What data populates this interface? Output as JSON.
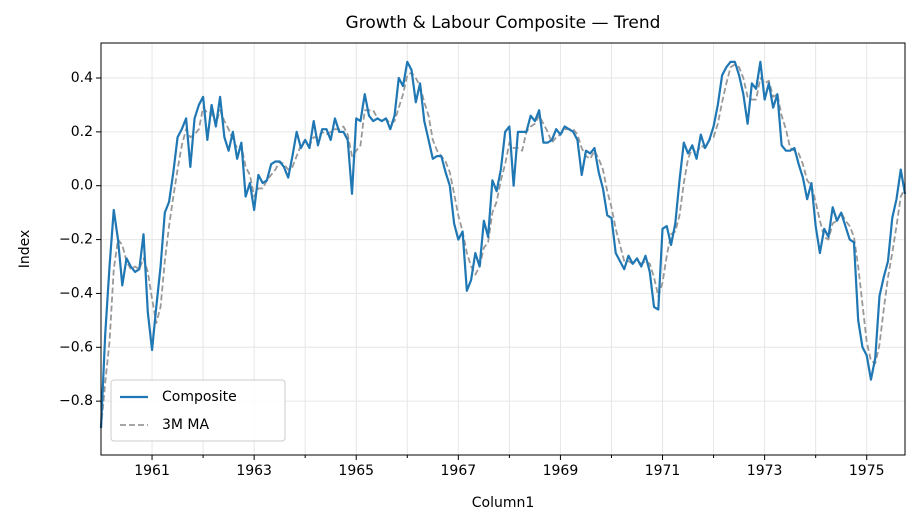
{
  "chart_data": {
    "type": "line",
    "title": "Growth & Labour Composite — Trend",
    "x_label": "Column1",
    "y_label": "Index",
    "x": [
      1960.0,
      1960.083,
      1960.167,
      1960.25,
      1960.333,
      1960.417,
      1960.5,
      1960.583,
      1960.667,
      1960.75,
      1960.833,
      1960.917,
      1961.0,
      1961.083,
      1961.167,
      1961.25,
      1961.333,
      1961.417,
      1961.5,
      1961.583,
      1961.667,
      1961.75,
      1961.833,
      1961.917,
      1962.0,
      1962.083,
      1962.167,
      1962.25,
      1962.333,
      1962.417,
      1962.5,
      1962.583,
      1962.667,
      1962.75,
      1962.833,
      1962.917,
      1963.0,
      1963.083,
      1963.167,
      1963.25,
      1963.333,
      1963.417,
      1963.5,
      1963.583,
      1963.667,
      1963.75,
      1963.833,
      1963.917,
      1964.0,
      1964.083,
      1964.167,
      1964.25,
      1964.333,
      1964.417,
      1964.5,
      1964.583,
      1964.667,
      1964.75,
      1964.833,
      1964.917,
      1965.0,
      1965.083,
      1965.167,
      1965.25,
      1965.333,
      1965.417,
      1965.5,
      1965.583,
      1965.667,
      1965.75,
      1965.833,
      1965.917,
      1966.0,
      1966.083,
      1966.167,
      1966.25,
      1966.333,
      1966.417,
      1966.5,
      1966.583,
      1966.667,
      1966.75,
      1966.833,
      1966.917,
      1967.0,
      1967.083,
      1967.167,
      1967.25,
      1967.333,
      1967.417,
      1967.5,
      1967.583,
      1967.667,
      1967.75,
      1967.833,
      1967.917,
      1968.0,
      1968.083,
      1968.167,
      1968.25,
      1968.333,
      1968.417,
      1968.5,
      1968.583,
      1968.667,
      1968.75,
      1968.833,
      1968.917,
      1969.0,
      1969.083,
      1969.167,
      1969.25,
      1969.333,
      1969.417,
      1969.5,
      1969.583,
      1969.667,
      1969.75,
      1969.833,
      1969.917,
      1970.0,
      1970.083,
      1970.167,
      1970.25,
      1970.333,
      1970.417,
      1970.5,
      1970.583,
      1970.667,
      1970.75,
      1970.833,
      1970.917,
      1971.0,
      1971.083,
      1971.167,
      1971.25,
      1971.333,
      1971.417,
      1971.5,
      1971.583,
      1971.667,
      1971.75,
      1971.833,
      1971.917,
      1972.0,
      1972.083,
      1972.167,
      1972.25,
      1972.333,
      1972.417,
      1972.5,
      1972.583,
      1972.667,
      1972.75,
      1972.833,
      1972.917,
      1973.0,
      1973.083,
      1973.167,
      1973.25,
      1973.333,
      1973.417,
      1973.5,
      1973.583,
      1973.667,
      1973.75,
      1973.833,
      1973.917,
      1974.0,
      1974.083,
      1974.167,
      1974.25,
      1974.333,
      1974.417,
      1974.5,
      1974.583,
      1974.667,
      1974.75,
      1974.833,
      1974.917,
      1975.0,
      1975.083,
      1975.167,
      1975.25,
      1975.333,
      1975.417,
      1975.5,
      1975.583,
      1975.667,
      1975.75
    ],
    "series": [
      {
        "name": "Composite",
        "color": "#1f77b4",
        "dashed": false,
        "values": [
          -0.9,
          -0.55,
          -0.3,
          -0.09,
          -0.2,
          -0.37,
          -0.27,
          -0.3,
          -0.32,
          -0.31,
          -0.18,
          -0.47,
          -0.61,
          -0.45,
          -0.3,
          -0.1,
          -0.06,
          0.05,
          0.18,
          0.21,
          0.25,
          0.07,
          0.25,
          0.3,
          0.33,
          0.17,
          0.3,
          0.22,
          0.33,
          0.18,
          0.13,
          0.2,
          0.1,
          0.16,
          -0.04,
          0.01,
          -0.09,
          0.04,
          0.01,
          0.02,
          0.08,
          0.09,
          0.09,
          0.07,
          0.03,
          0.11,
          0.2,
          0.14,
          0.17,
          0.14,
          0.24,
          0.15,
          0.21,
          0.21,
          0.17,
          0.25,
          0.2,
          0.2,
          0.17,
          -0.03,
          0.25,
          0.24,
          0.34,
          0.26,
          0.24,
          0.25,
          0.24,
          0.25,
          0.21,
          0.26,
          0.4,
          0.37,
          0.46,
          0.43,
          0.31,
          0.38,
          0.24,
          0.17,
          0.1,
          0.11,
          0.11,
          0.05,
          0.0,
          -0.14,
          -0.2,
          -0.17,
          -0.39,
          -0.35,
          -0.25,
          -0.3,
          -0.13,
          -0.19,
          0.02,
          -0.02,
          0.06,
          0.2,
          0.22,
          0.0,
          0.2,
          0.2,
          0.2,
          0.26,
          0.24,
          0.28,
          0.16,
          0.16,
          0.17,
          0.21,
          0.19,
          0.22,
          0.21,
          0.2,
          0.17,
          0.04,
          0.13,
          0.12,
          0.14,
          0.05,
          -0.01,
          -0.11,
          -0.12,
          -0.25,
          -0.28,
          -0.31,
          -0.26,
          -0.29,
          -0.27,
          -0.3,
          -0.26,
          -0.32,
          -0.45,
          -0.46,
          -0.16,
          -0.15,
          -0.22,
          -0.14,
          0.02,
          0.16,
          0.12,
          0.15,
          0.1,
          0.19,
          0.14,
          0.17,
          0.22,
          0.3,
          0.41,
          0.44,
          0.46,
          0.46,
          0.41,
          0.34,
          0.23,
          0.38,
          0.36,
          0.46,
          0.32,
          0.38,
          0.29,
          0.34,
          0.15,
          0.13,
          0.13,
          0.14,
          0.08,
          0.03,
          -0.05,
          0.01,
          -0.15,
          -0.25,
          -0.16,
          -0.19,
          -0.08,
          -0.13,
          -0.1,
          -0.15,
          -0.2,
          -0.21,
          -0.5,
          -0.6,
          -0.63,
          -0.72,
          -0.64,
          -0.41,
          -0.34,
          -0.28,
          -0.12,
          -0.05,
          0.06,
          -0.03
        ]
      },
      {
        "name": "3M MA",
        "color": "#999999",
        "dashed": true,
        "values": [
          -0.9,
          -0.73,
          -0.58,
          -0.31,
          -0.2,
          -0.22,
          -0.28,
          -0.31,
          -0.3,
          -0.31,
          -0.27,
          -0.32,
          -0.42,
          -0.51,
          -0.45,
          -0.28,
          -0.15,
          -0.04,
          0.06,
          0.15,
          0.21,
          0.18,
          0.19,
          0.21,
          0.29,
          0.27,
          0.27,
          0.23,
          0.28,
          0.24,
          0.21,
          0.17,
          0.14,
          0.15,
          0.07,
          0.04,
          -0.04,
          -0.01,
          -0.01,
          0.02,
          0.04,
          0.06,
          0.09,
          0.08,
          0.06,
          0.07,
          0.11,
          0.15,
          0.17,
          0.15,
          0.18,
          0.18,
          0.2,
          0.19,
          0.2,
          0.21,
          0.21,
          0.22,
          0.19,
          0.11,
          0.13,
          0.15,
          0.28,
          0.28,
          0.28,
          0.25,
          0.24,
          0.25,
          0.23,
          0.24,
          0.29,
          0.34,
          0.41,
          0.42,
          0.4,
          0.37,
          0.31,
          0.26,
          0.17,
          0.13,
          0.11,
          0.09,
          0.05,
          -0.03,
          -0.11,
          -0.17,
          -0.25,
          -0.3,
          -0.33,
          -0.3,
          -0.23,
          -0.21,
          -0.1,
          -0.06,
          0.02,
          0.08,
          0.16,
          0.14,
          0.14,
          0.13,
          0.2,
          0.22,
          0.23,
          0.26,
          0.23,
          0.2,
          0.16,
          0.18,
          0.19,
          0.21,
          0.21,
          0.21,
          0.19,
          0.14,
          0.11,
          0.1,
          0.13,
          0.1,
          0.06,
          -0.02,
          -0.08,
          -0.16,
          -0.22,
          -0.28,
          -0.28,
          -0.29,
          -0.27,
          -0.29,
          -0.28,
          -0.29,
          -0.34,
          -0.41,
          -0.36,
          -0.26,
          -0.18,
          -0.17,
          -0.11,
          0.01,
          0.1,
          0.14,
          0.12,
          0.15,
          0.14,
          0.17,
          0.18,
          0.23,
          0.31,
          0.38,
          0.44,
          0.45,
          0.44,
          0.4,
          0.33,
          0.32,
          0.32,
          0.4,
          0.38,
          0.39,
          0.33,
          0.34,
          0.26,
          0.21,
          0.14,
          0.13,
          0.12,
          0.08,
          0.02,
          0,
          -0.06,
          -0.13,
          -0.19,
          -0.2,
          -0.14,
          -0.13,
          -0.1,
          -0.13,
          -0.15,
          -0.19,
          -0.3,
          -0.44,
          -0.58,
          -0.65,
          -0.66,
          -0.59,
          -0.46,
          -0.34,
          -0.25,
          -0.15,
          -0.04,
          -0.01
        ]
      }
    ],
    "xlim": [
      1960.0,
      1975.75
    ],
    "ylim": [
      -1.0,
      0.53
    ],
    "xticks": [
      1961,
      1963,
      1965,
      1967,
      1969,
      1971,
      1973,
      1975
    ],
    "xminorticks": [
      1962,
      1964,
      1966,
      1968,
      1970,
      1972,
      1974
    ],
    "yticks": [
      {
        "value": -0.8,
        "label": "−0.8"
      },
      {
        "value": -0.6,
        "label": "−0.6"
      },
      {
        "value": -0.4,
        "label": "−0.4"
      },
      {
        "value": -0.2,
        "label": "−0.2"
      },
      {
        "value": 0,
        "label": "0.0"
      },
      0.2,
      0.4
    ],
    "grid": true,
    "legend": "lower left"
  }
}
